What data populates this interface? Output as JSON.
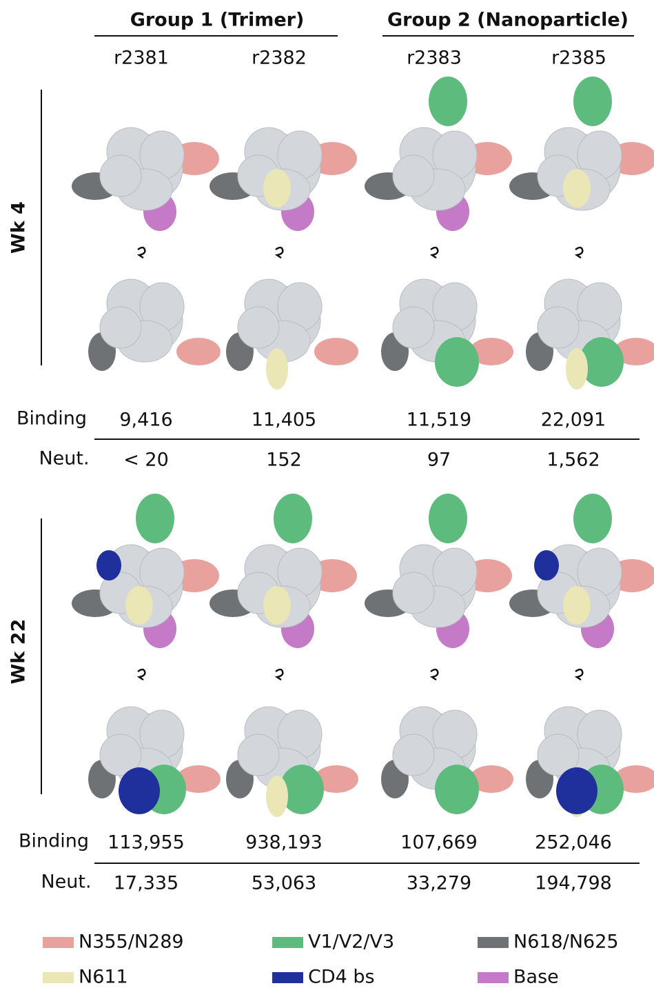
{
  "header": {
    "groups": [
      {
        "label": "Group 1 (Trimer)"
      },
      {
        "label": "Group 2 (Nanoparticle)"
      }
    ],
    "columns": [
      "r2381",
      "r2382",
      "r2383",
      "r2385"
    ]
  },
  "timepoints": [
    {
      "label": "Wk 4",
      "binding_label": "Binding",
      "neut_label": "Neut.",
      "binding": [
        "9,416",
        "11,405",
        "11,519",
        "22,091"
      ],
      "neut": [
        "< 20",
        "152",
        "97",
        "1,562"
      ]
    },
    {
      "label": "Wk 22",
      "binding_label": "Binding",
      "neut_label": "Neut.",
      "binding": [
        "113,955",
        "938,193",
        "107,669",
        "252,046"
      ],
      "neut": [
        "17,335",
        "53,063",
        "33,279",
        "194,798"
      ]
    }
  ],
  "legend": [
    {
      "label": "N355/N289",
      "color": "#e8a19d"
    },
    {
      "label": "V1/V2/V3",
      "color": "#5dbb7e"
    },
    {
      "label": "N618/N625",
      "color": "#6f7274"
    },
    {
      "label": "N611",
      "color": "#ebe6b6"
    },
    {
      "label": "CD4 bs",
      "color": "#1f2f9c"
    },
    {
      "label": "Base",
      "color": "#c47ac7"
    }
  ]
}
